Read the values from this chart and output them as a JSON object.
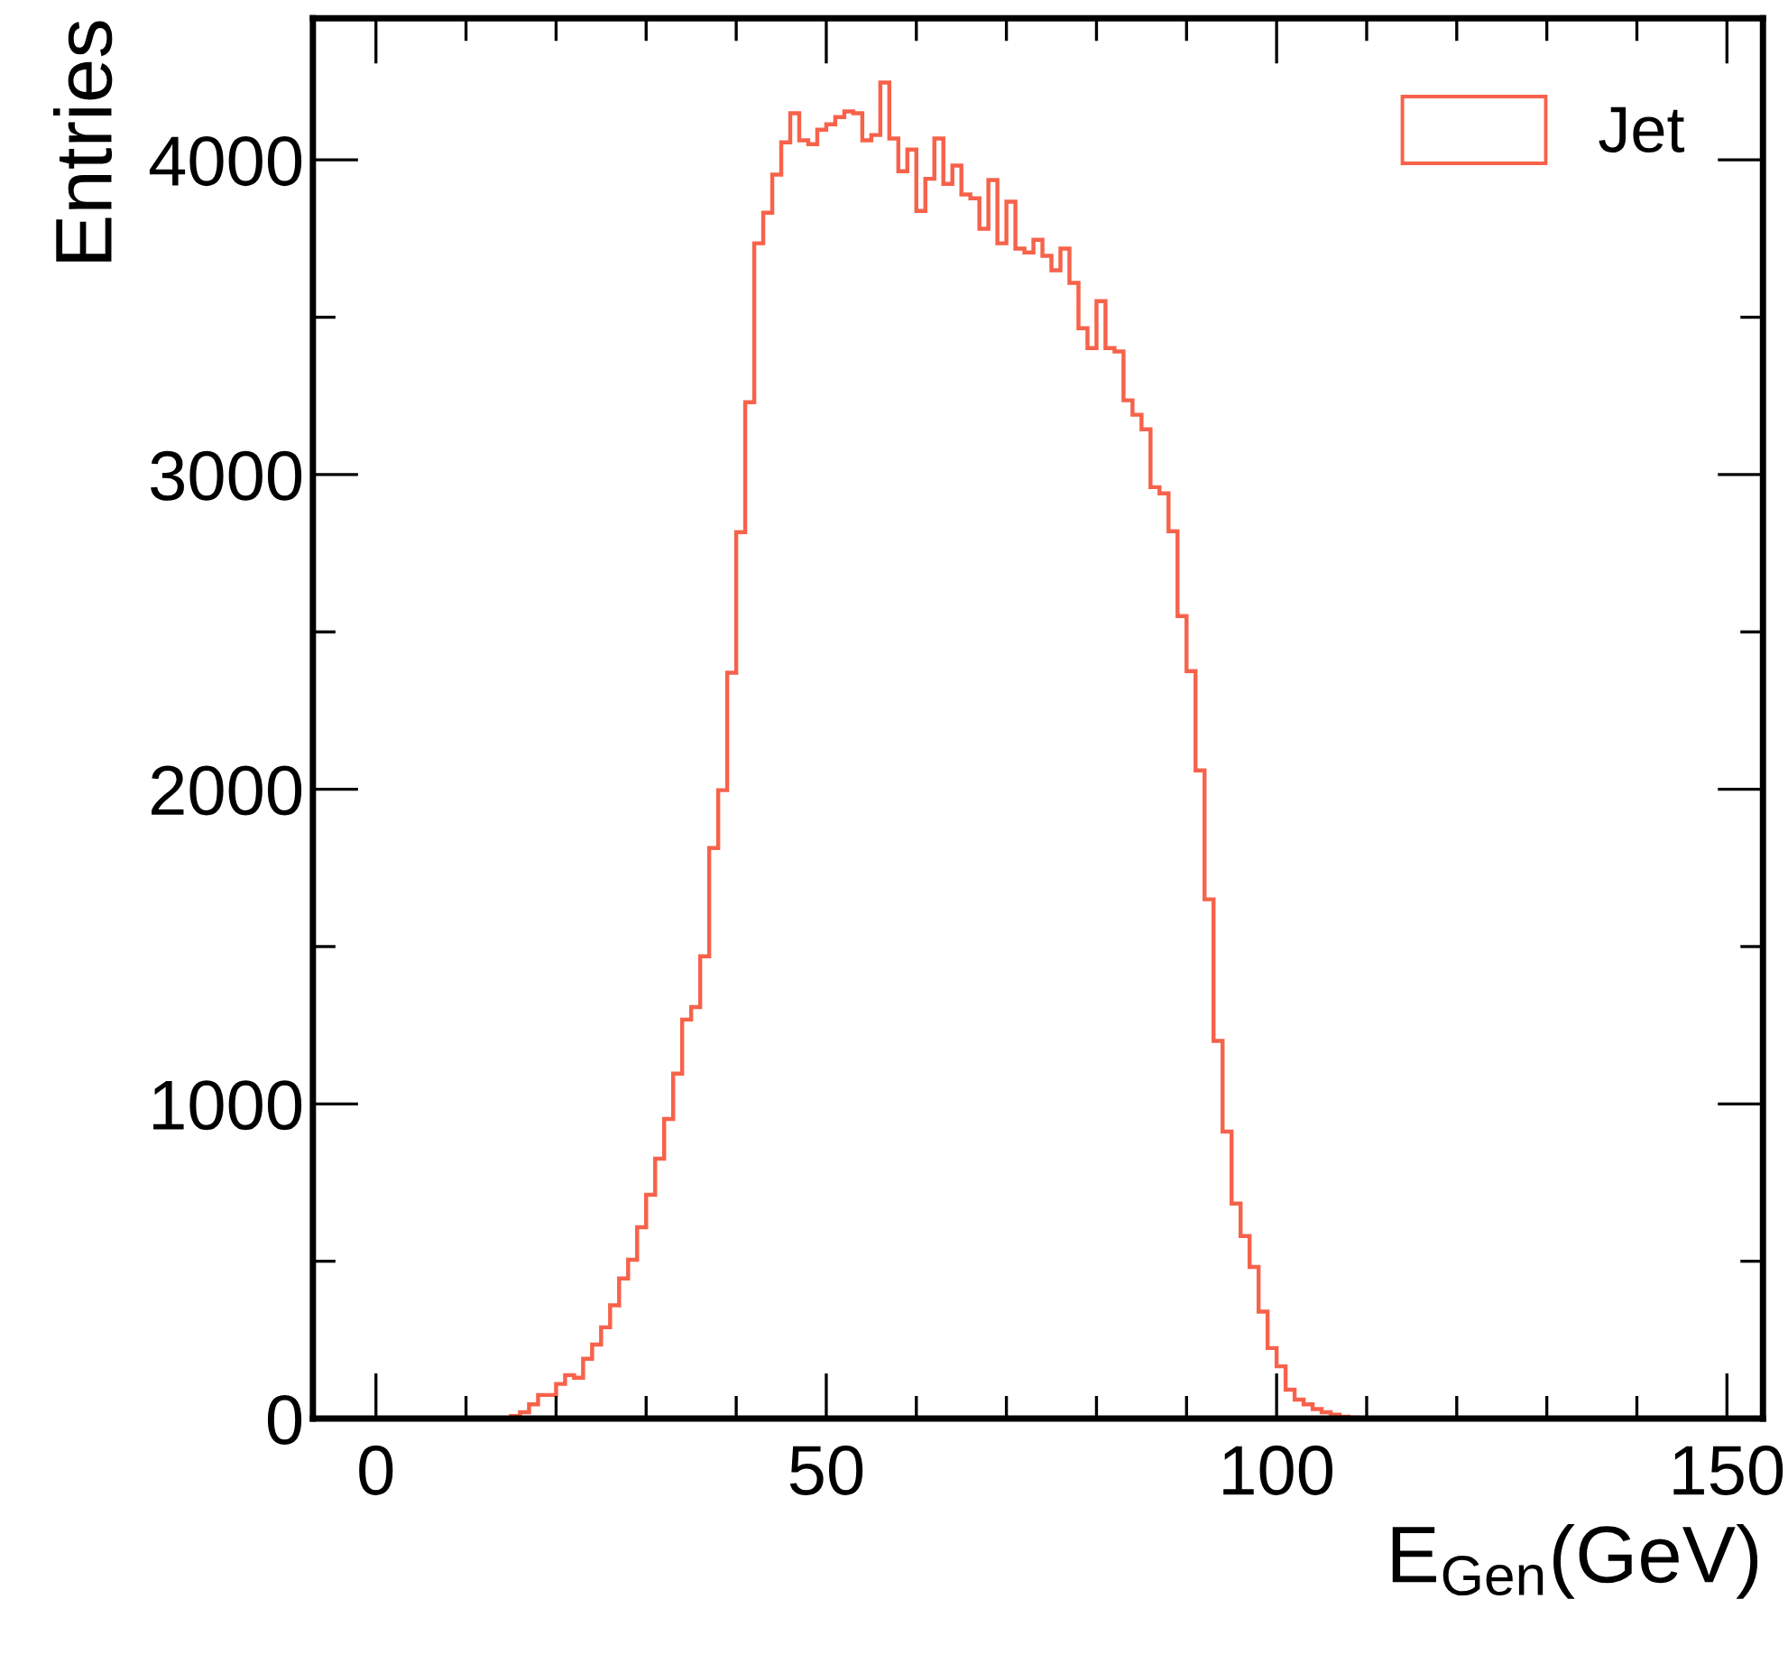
{
  "chart_data": {
    "type": "histogram",
    "xlabel": "E$_{Gen}$(GeV)",
    "ylabel": "Entries",
    "bins": [
      15,
      16,
      17,
      18,
      19,
      20,
      21,
      22,
      23,
      24,
      25,
      26,
      27,
      28,
      29,
      30,
      31,
      32,
      33,
      34,
      35,
      36,
      37,
      38,
      39,
      40,
      41,
      42,
      43,
      44,
      45,
      46,
      47,
      48,
      49,
      50,
      51,
      52,
      53,
      54,
      55,
      56,
      57,
      58,
      59,
      60,
      61,
      62,
      63,
      64,
      65,
      66,
      67,
      68,
      69,
      70,
      71,
      72,
      73,
      74,
      75,
      76,
      77,
      78,
      79,
      80,
      81,
      82,
      83,
      84,
      85,
      86,
      87,
      88,
      89,
      90,
      91,
      92,
      93,
      94,
      95,
      96,
      97,
      98,
      99,
      100,
      101,
      102,
      103,
      104,
      105,
      106,
      107,
      108,
      109,
      110
    ],
    "series": [
      {
        "name": "Jet",
        "color": "#f7624b",
        "values": [
          8,
          20,
          45,
          75,
          75,
          110,
          138,
          130,
          190,
          235,
          290,
          360,
          445,
          505,
          608,
          711,
          826,
          952,
          1096,
          1268,
          1308,
          1469,
          1813,
          1997,
          2370,
          2817,
          3230,
          3735,
          3832,
          3953,
          4056,
          4148,
          4062,
          4050,
          4096,
          4113,
          4136,
          4154,
          4148,
          4062,
          4079,
          4246,
          4068,
          3964,
          4033,
          3838,
          3940,
          4068,
          3924,
          3982,
          3890,
          3878,
          3781,
          3936,
          3735,
          3867,
          3718,
          3706,
          3746,
          3695,
          3649,
          3718,
          3609,
          3465,
          3402,
          3551,
          3402,
          3391,
          3236,
          3190,
          3144,
          2960,
          2940,
          2820,
          2550,
          2375,
          2060,
          1650,
          1200,
          912,
          683,
          580,
          482,
          340,
          224,
          166,
          92,
          60,
          45,
          30,
          20,
          12,
          6,
          3,
          1
        ]
      }
    ],
    "xlim": [
      -7,
      154
    ],
    "ylim": [
      0,
      4450
    ],
    "xticks": [
      0,
      50,
      100,
      150
    ],
    "yticks": [
      0,
      1000,
      2000,
      3000,
      4000
    ],
    "grid": false,
    "legend": "top right"
  }
}
